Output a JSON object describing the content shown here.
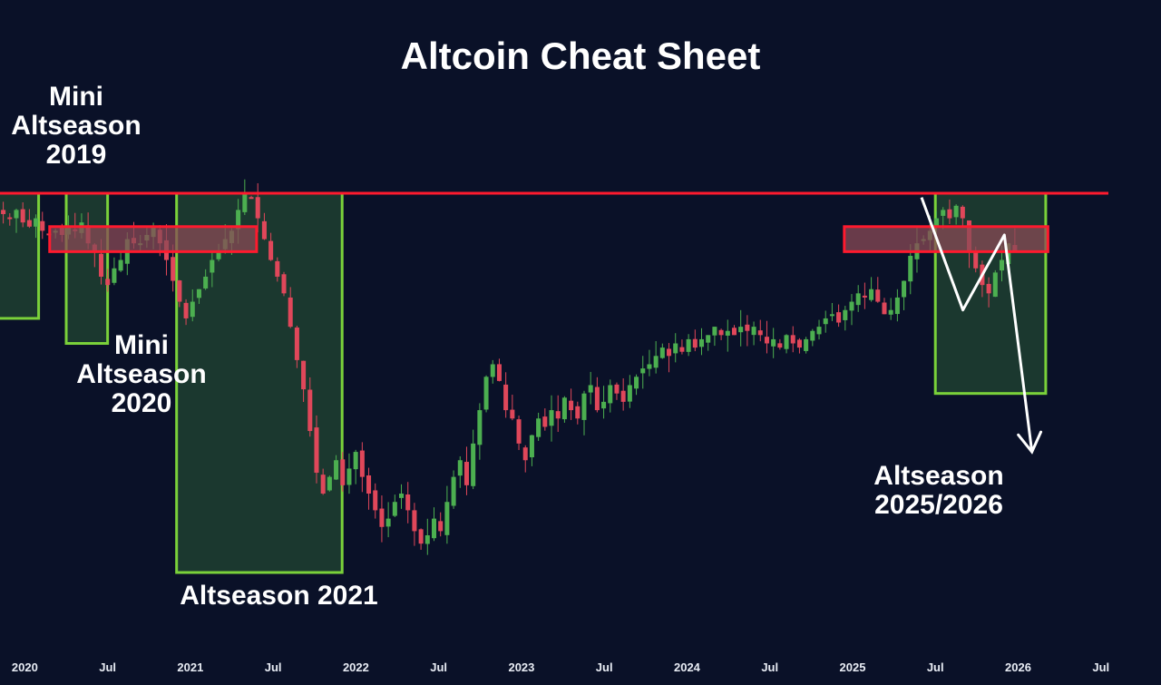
{
  "title": "Altcoin Cheat Sheet",
  "colors": {
    "background": "#0a1128",
    "up": "#4caf50",
    "down": "#e0475a",
    "zone_fill": "#2a5a34",
    "zone_border": "#7ad13a",
    "resistance": "#ff1a2e",
    "band_fill": "#8a4a55",
    "arrow": "#ffffff"
  },
  "annotations": {
    "mini2019": [
      "Mini",
      "Altseason",
      "2019"
    ],
    "mini2020": [
      "Mini",
      "Altseason",
      "2020"
    ],
    "alt2021": [
      "Altseason 2021"
    ],
    "alt2025": [
      "Altseason",
      "2025/2026"
    ]
  },
  "chart_data": {
    "type": "candlestick",
    "title": "Altcoin Cheat Sheet",
    "x_ticks": [
      "2020",
      "Jul",
      "2021",
      "Jul",
      "2022",
      "Jul",
      "2023",
      "Jul",
      "2024",
      "Jul",
      "2025",
      "Jul",
      "2026",
      "Jul"
    ],
    "ylim": [
      0,
      100
    ],
    "resistance_level": 82,
    "band_range": [
      68,
      74
    ],
    "zones": [
      {
        "name": "Mini Altseason 2019",
        "from": "2019-11",
        "to": "2020-02",
        "low": 52,
        "high": 82
      },
      {
        "name": "Mini Altseason 2020",
        "from": "2020-04",
        "to": "2020-07",
        "low": 46,
        "high": 82
      },
      {
        "name": "Altseason 2021",
        "from": "2020-12",
        "to": "2021-12",
        "low": -10,
        "high": 82
      },
      {
        "name": "Altseason 2025/2026",
        "from": "2025-07",
        "to": "2026-03",
        "low": 34,
        "high": 82
      }
    ],
    "projection": [
      {
        "date": "2025-06",
        "value": 81
      },
      {
        "date": "2025-09",
        "value": 54
      },
      {
        "date": "2025-12",
        "value": 72
      },
      {
        "date": "2026-02",
        "value": 20
      }
    ],
    "series_close": [
      77,
      76,
      78,
      75,
      74,
      76,
      73,
      72,
      73,
      72,
      74,
      73,
      75,
      70,
      68,
      62,
      60,
      64,
      66,
      71,
      70,
      70,
      72,
      74,
      70,
      66,
      61,
      56,
      52,
      56,
      59,
      62,
      66,
      68,
      71,
      73,
      78,
      82,
      81,
      76,
      71,
      66,
      62,
      58,
      50,
      42,
      35,
      25,
      15,
      10,
      14,
      18,
      12,
      16,
      20,
      14,
      10,
      6,
      2,
      4,
      8,
      10,
      6,
      1,
      -2,
      0,
      4,
      1,
      8,
      14,
      18,
      12,
      22,
      30,
      38,
      41,
      37,
      30,
      28,
      22,
      18,
      24,
      28,
      26,
      30,
      28,
      33,
      30,
      28,
      34,
      36,
      30,
      32,
      36,
      34,
      32,
      36,
      38,
      40,
      41,
      43,
      45,
      43,
      46,
      44,
      47,
      45,
      47,
      48,
      50,
      48,
      49,
      48,
      50,
      49,
      50,
      48,
      46,
      47,
      45,
      48,
      46,
      45,
      47,
      49,
      50,
      52,
      53,
      51,
      54,
      56,
      58,
      57,
      59,
      56,
      53,
      54,
      57,
      61,
      67,
      70,
      71,
      73,
      76,
      78,
      76,
      79,
      76,
      68,
      64,
      60,
      58,
      63,
      66,
      70,
      68
    ]
  }
}
